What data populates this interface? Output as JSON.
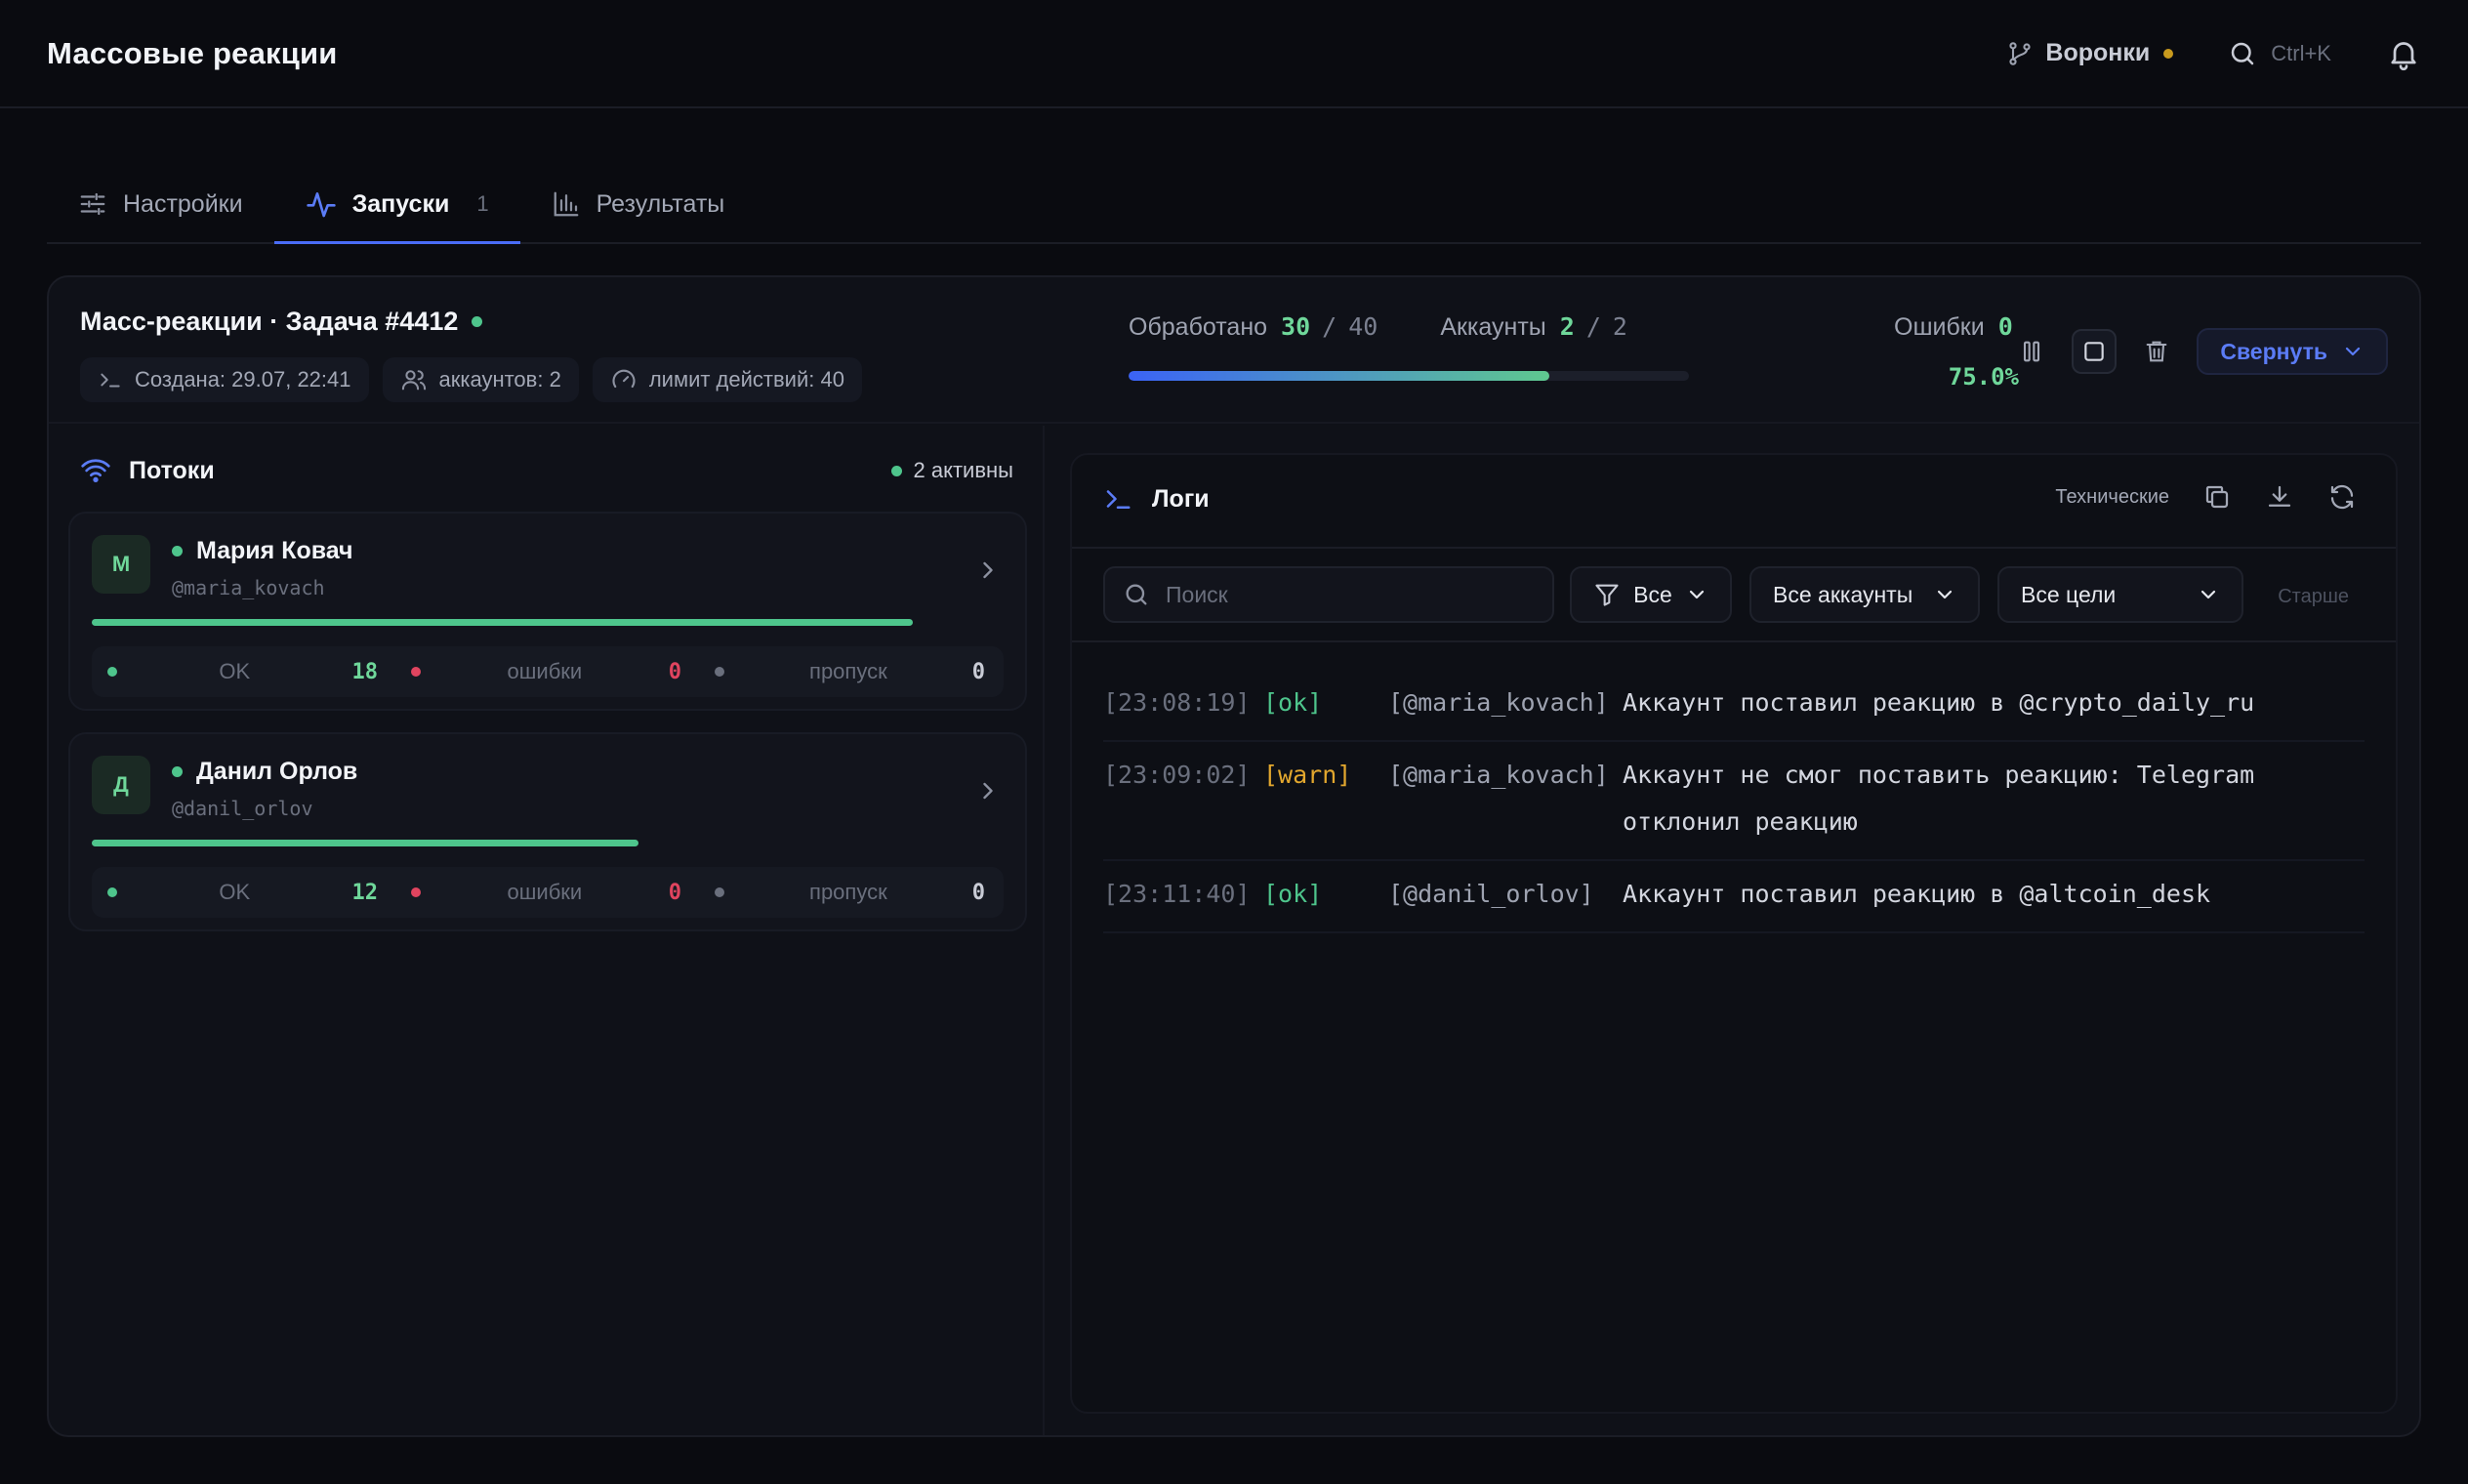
{
  "header": {
    "title": "Массовые реакции",
    "funnels_label": "Воронки",
    "search_hint": "Ctrl+K"
  },
  "tabs": [
    {
      "label": "Настройки"
    },
    {
      "label": "Запуски",
      "count": "1"
    },
    {
      "label": "Результаты"
    }
  ],
  "task": {
    "title": "Масс-реакции · Задача #4412",
    "meta": {
      "created": "Создана: 29.07, 22:41",
      "accounts": "аккаунтов: 2",
      "limit": "лимит действий: 40"
    },
    "processed_label": "Обработано",
    "processed": "30",
    "processed_total": "40",
    "accounts_label": "Аккаунты",
    "accounts_active": "2",
    "accounts_total": "2",
    "errors_label": "Ошибки",
    "errors": "0",
    "percent": "75.0%",
    "progress": 0.75,
    "collapse_label": "Свернуть"
  },
  "threads": {
    "title": "Потоки",
    "active_label": "2 активны",
    "items": [
      {
        "initial": "М",
        "name": "Мария Ковач",
        "handle": "@maria_kovach",
        "progress": 0.9,
        "ok_label": "OK",
        "ok": "18",
        "err_label": "ошибки",
        "err": "0",
        "skip_label": "пропуск",
        "skip": "0"
      },
      {
        "initial": "Д",
        "name": "Данил Орлов",
        "handle": "@danil_orlov",
        "progress": 0.6,
        "ok_label": "OK",
        "ok": "12",
        "err_label": "ошибки",
        "err": "0",
        "skip_label": "пропуск",
        "skip": "0"
      }
    ]
  },
  "logs": {
    "title": "Логи",
    "technical_label": "Технические",
    "search_placeholder": "Поиск",
    "filter_level": "Все",
    "filter_accounts": "Все аккаунты",
    "filter_targets": "Все цели",
    "older_label": "Старше",
    "entries": [
      {
        "time": "[23:08:19]",
        "level": "[ok]",
        "account": "[@maria_kovach]",
        "message": "Аккаунт поставил реакцию в @crypto_daily_ru"
      },
      {
        "time": "[23:09:02]",
        "level": "[warn]",
        "account": "[@maria_kovach]",
        "message": "Аккаунт не смог поставить реакцию: Telegram отклонил реакцию"
      },
      {
        "time": "[23:11:40]",
        "level": "[ok]",
        "account": "[@danil_orlov]",
        "message": "Аккаунт поставил реакцию в @altcoin_desk"
      }
    ]
  },
  "colors": {
    "accent": "#4a6cf7",
    "ok": "#4ec58c",
    "warn": "#e2a72e",
    "error": "#e0445f",
    "funnel_dot": "#c99a1e"
  },
  "icons": [
    "branch-icon",
    "search-icon",
    "bell-icon",
    "sliders-icon",
    "activity-icon",
    "bar-chart-icon",
    "terminal-icon",
    "users-icon",
    "gauge-icon",
    "pause-icon",
    "stop-icon",
    "trash-icon",
    "chevron-down-icon",
    "wifi-icon",
    "chevron-right-icon",
    "copy-icon",
    "download-icon",
    "refresh-icon",
    "filter-icon"
  ]
}
